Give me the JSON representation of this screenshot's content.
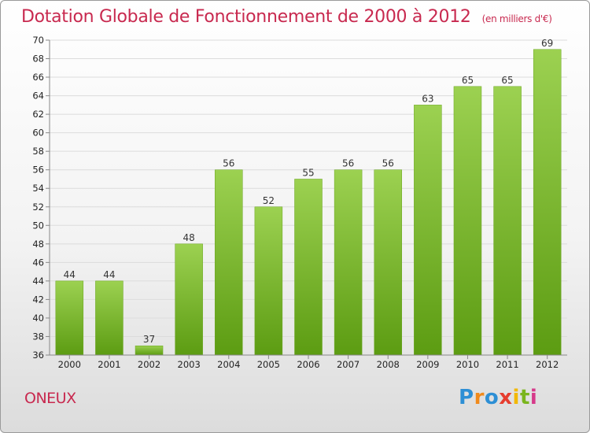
{
  "title": "Dotation Globale de Fonctionnement de 2000 à 2012",
  "subtitle": "(en milliers d'€)",
  "commune": "ONEUX",
  "logo": {
    "text": "Proxiti",
    "letters": [
      "P",
      "r",
      "o",
      "x",
      "i",
      "t",
      "i"
    ],
    "colors": [
      "#2d8fd5",
      "#f08a1c",
      "#2d8fd5",
      "#e63d2f",
      "#f2b800",
      "#7ab51d",
      "#d63a8a"
    ]
  },
  "colors": {
    "accent": "#c8294f",
    "bar_top": "#9cd151",
    "bar_bottom": "#5c9c12"
  },
  "chart_data": {
    "type": "bar",
    "categories": [
      "2000",
      "2001",
      "2002",
      "2003",
      "2004",
      "2005",
      "2006",
      "2007",
      "2008",
      "2009",
      "2010",
      "2011",
      "2012"
    ],
    "values": [
      44,
      44,
      37,
      48,
      56,
      52,
      55,
      56,
      56,
      63,
      65,
      65,
      69
    ],
    "title": "Dotation Globale de Fonctionnement de 2000 à 2012",
    "subtitle": "(en milliers d'€)",
    "xlabel": "",
    "ylabel": "",
    "ylim": [
      36,
      70
    ],
    "yticks": [
      36,
      38,
      40,
      42,
      44,
      46,
      48,
      50,
      52,
      54,
      56,
      58,
      60,
      62,
      64,
      66,
      68,
      70
    ],
    "grid": true,
    "data_labels": true
  }
}
